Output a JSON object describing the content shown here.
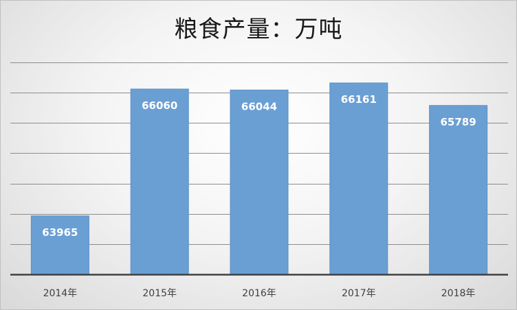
{
  "chart_data": {
    "type": "bar",
    "title": "粮食产量：万吨",
    "categories": [
      "2014年",
      "2015年",
      "2016年",
      "2017年",
      "2018年"
    ],
    "values": [
      63965,
      66060,
      66044,
      66161,
      65789
    ],
    "ylim": [
      63000,
      66500
    ],
    "grid": true,
    "legend": "none",
    "colors": {
      "bar": "#6a9fd4",
      "bar_edge": "#5b8fc6",
      "grid": "#8c8c8c",
      "axis": "#404040"
    }
  }
}
